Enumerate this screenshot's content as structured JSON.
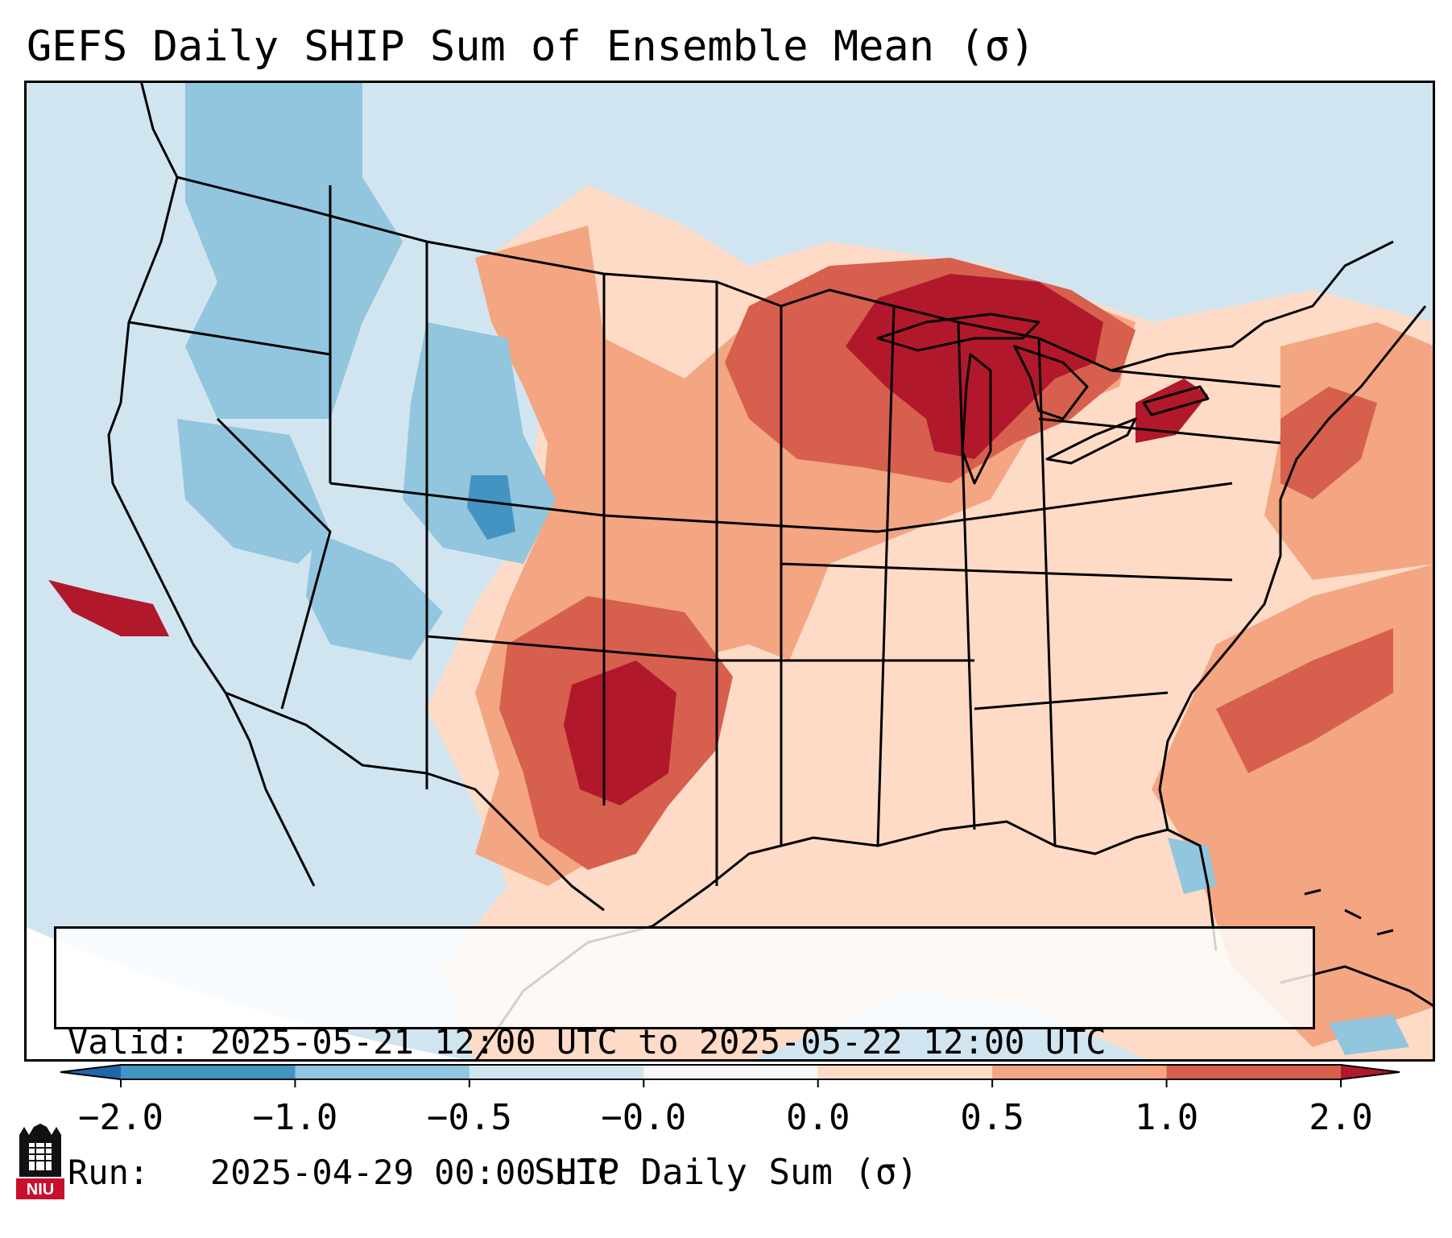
{
  "title": "GEFS Daily SHIP Sum of Ensemble Mean (σ)",
  "info": {
    "valid_line": "Valid: 2025-05-21 12:00 UTC to 2025-05-22 12:00 UTC",
    "run_line": "Run:   2025-04-29 00:00 UTC"
  },
  "colorbar": {
    "label": "SHIP Daily Sum (σ)",
    "ticks": [
      "−2.0",
      "−1.0",
      "−0.5",
      "−0.0",
      "0.0",
      "0.5",
      "1.0",
      "2.0"
    ],
    "bin_colors": [
      "#4393c3",
      "#92c5de",
      "#d1e5f0",
      "#f7f7f7",
      "#fddbc7",
      "#f4a582",
      "#d6604d"
    ],
    "under_color": "#2166ac",
    "over_color": "#b2182b"
  },
  "map": {
    "ocean_color": "#d1e5f0",
    "land_base_color": "#d1e5f0",
    "outline_color": "#000000"
  },
  "logo": {
    "text": "NIU",
    "color": "#c8102e"
  }
}
